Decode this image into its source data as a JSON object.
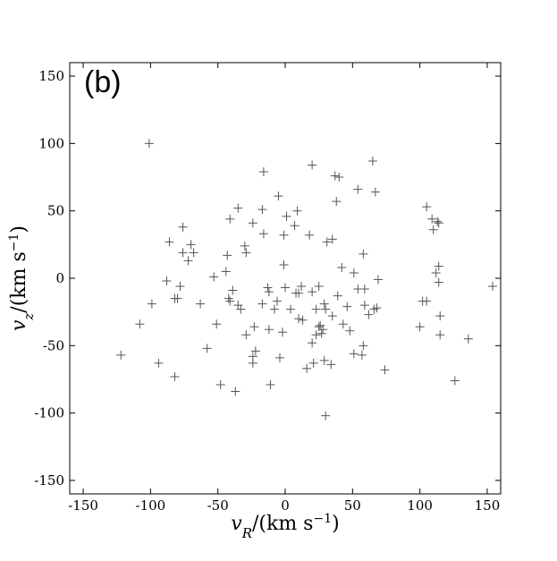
{
  "chart_data": {
    "type": "scatter",
    "panel_label": "(b)",
    "xlabel": [
      "v",
      "R",
      "/(km s",
      "−1",
      ")"
    ],
    "ylabel": [
      "v",
      "z",
      "/(km s",
      "−1",
      ")"
    ],
    "color": "#555555",
    "xlim": [
      -160,
      160
    ],
    "ylim": [
      -160,
      160
    ],
    "xticks": [
      -150,
      -100,
      -50,
      0,
      50,
      100,
      150
    ],
    "yticks": [
      -150,
      -100,
      -50,
      0,
      50,
      100,
      150
    ],
    "x": [
      -101,
      -122,
      -108,
      -99,
      -94,
      -86,
      -88,
      -82,
      -80,
      -82,
      -76,
      -78,
      -76,
      -70,
      -72,
      -68,
      -63,
      -58,
      -53,
      -51,
      -48,
      -43,
      -44,
      -42,
      -41,
      -39,
      -41,
      -37,
      -35,
      -33,
      -35,
      -30,
      -29,
      -29,
      -24,
      -24,
      -22,
      -23,
      -24,
      -16,
      -17,
      -16,
      -17,
      -13,
      -12,
      -11,
      -12,
      -8,
      -5,
      -6,
      -4,
      -2,
      -1,
      -1,
      1,
      0,
      4,
      7,
      9,
      8,
      10,
      10,
      12,
      13,
      16,
      18,
      20,
      20,
      20,
      21,
      23,
      23,
      25,
      25,
      27,
      28,
      26,
      29,
      30,
      29,
      30,
      34,
      31,
      35,
      37,
      40,
      38,
      39,
      35,
      42,
      43,
      46,
      48,
      51,
      51,
      54,
      54,
      57,
      58,
      59,
      58,
      59,
      62,
      65,
      67,
      66,
      68,
      69,
      74,
      100,
      105,
      102,
      105,
      109,
      110,
      112,
      113,
      114,
      114,
      115,
      115,
      114,
      126,
      136,
      154
    ],
    "values": [
      100,
      -57,
      -34,
      -19,
      -63,
      27,
      -2,
      -15,
      -15,
      -73,
      38,
      -6,
      19,
      25,
      13,
      19,
      -19,
      -52,
      1,
      -34,
      -79,
      17,
      5,
      -15,
      44,
      -9,
      -17,
      -84,
      -20,
      -23,
      52,
      24,
      19,
      -42,
      -63,
      -58,
      -54,
      -36,
      41,
      79,
      51,
      33,
      -19,
      -7,
      -10,
      -79,
      -38,
      -23,
      61,
      -17,
      -59,
      -40,
      10,
      32,
      46,
      -7,
      -23,
      39,
      50,
      -11,
      -11,
      -30,
      -6,
      -31,
      -67,
      32,
      84,
      -10,
      -48,
      -63,
      -42,
      -23,
      -36,
      -6,
      -41,
      -38,
      -35,
      -19,
      -23,
      -61,
      -102,
      -64,
      27,
      29,
      76,
      75,
      57,
      -13,
      -28,
      8,
      -34,
      -21,
      -39,
      4,
      -56,
      66,
      -8,
      -57,
      -50,
      -8,
      18,
      -20,
      -27,
      87,
      64,
      -23,
      -22,
      -1,
      -68,
      -36,
      -17,
      -17,
      53,
      44,
      36,
      4,
      42,
      9,
      -3,
      -28,
      -42,
      41,
      -76,
      -45,
      -6
    ]
  }
}
